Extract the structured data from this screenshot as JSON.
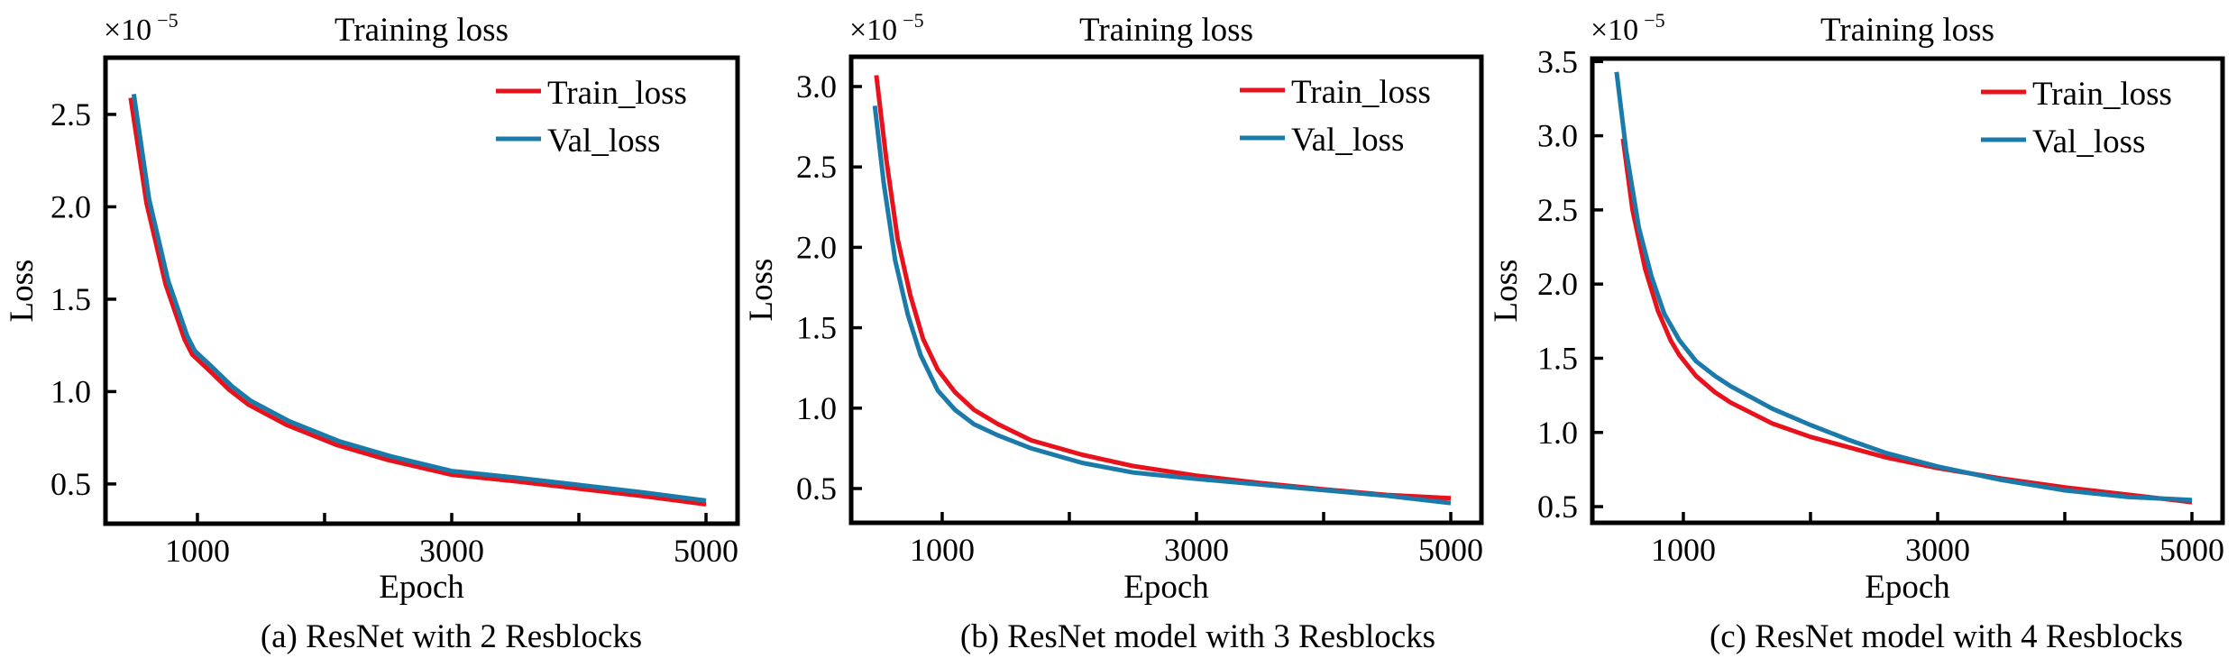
{
  "chart_data": [
    {
      "type": "line",
      "panel": "a",
      "title": "Training loss",
      "caption": "(a) ResNet with 2 Resblocks",
      "xlabel": "Epoch",
      "ylabel": "Loss",
      "y_multiplier": {
        "base": "×10",
        "exponent": "−5"
      },
      "xlim": [
        277,
        5248
      ],
      "ylim": [
        0.285,
        2.807
      ],
      "xticks": [
        1000,
        2000,
        3000,
        4000,
        5000
      ],
      "xtick_labels": [
        "1000",
        "",
        "3000",
        "",
        "5000"
      ],
      "yticks": [
        0.5,
        1.0,
        1.5,
        2.0,
        2.5
      ],
      "ytick_labels": [
        "0.5",
        "1.0",
        "1.5",
        "2.0",
        "2.5"
      ],
      "grid": false,
      "legend_position": "top-right",
      "series": [
        {
          "name": "Train_loss",
          "color": "#e8121c",
          "x": [
            475,
            600,
            750,
            900,
            960,
            1100,
            1250,
            1400,
            1700,
            2100,
            2500,
            3000,
            3500,
            4000,
            4500,
            5000
          ],
          "y": [
            2.59,
            2.02,
            1.58,
            1.28,
            1.2,
            1.11,
            1.01,
            0.93,
            0.82,
            0.71,
            0.63,
            0.55,
            0.515,
            0.475,
            0.435,
            0.39
          ]
        },
        {
          "name": "Val_loss",
          "color": "#1a7bab",
          "x": [
            500,
            620,
            770,
            920,
            980,
            1120,
            1270,
            1420,
            1720,
            2120,
            2520,
            3000,
            3500,
            4000,
            4500,
            5000
          ],
          "y": [
            2.61,
            2.04,
            1.6,
            1.3,
            1.22,
            1.13,
            1.03,
            0.95,
            0.84,
            0.73,
            0.65,
            0.57,
            0.535,
            0.495,
            0.455,
            0.41
          ]
        }
      ]
    },
    {
      "type": "line",
      "panel": "b",
      "title": "Training loss",
      "caption": "(b) ResNet model with 3 Resblocks",
      "xlabel": "Epoch",
      "ylabel": "Loss",
      "y_multiplier": {
        "base": "×10",
        "exponent": "−5"
      },
      "xlim": [
        284,
        5241
      ],
      "ylim": [
        0.287,
        3.185
      ],
      "xticks": [
        1000,
        2000,
        3000,
        4000,
        5000
      ],
      "xtick_labels": [
        "1000",
        "",
        "3000",
        "",
        "5000"
      ],
      "yticks": [
        0.5,
        1.0,
        1.5,
        2.0,
        2.5,
        3.0
      ],
      "ytick_labels": [
        "0.5",
        "1.0",
        "1.5",
        "2.0",
        "2.5",
        "3.0"
      ],
      "grid": false,
      "legend_position": "top-right",
      "series": [
        {
          "name": "Train_loss",
          "color": "#e8121c",
          "x": [
            482,
            560,
            650,
            750,
            850,
            965,
            1100,
            1250,
            1440,
            1700,
            2100,
            2500,
            3000,
            3500,
            4000,
            4500,
            5000
          ],
          "y": [
            3.07,
            2.55,
            2.05,
            1.7,
            1.43,
            1.24,
            1.1,
            0.99,
            0.9,
            0.8,
            0.71,
            0.64,
            0.58,
            0.535,
            0.495,
            0.46,
            0.44
          ]
        },
        {
          "name": "Val_loss",
          "color": "#1a7bab",
          "x": [
            470,
            540,
            630,
            730,
            830,
            965,
            1100,
            1250,
            1440,
            1700,
            2100,
            2500,
            3000,
            3500,
            4000,
            4500,
            5000
          ],
          "y": [
            2.88,
            2.4,
            1.92,
            1.58,
            1.33,
            1.11,
            0.99,
            0.9,
            0.83,
            0.75,
            0.66,
            0.6,
            0.56,
            0.525,
            0.49,
            0.455,
            0.41
          ]
        }
      ]
    },
    {
      "type": "line",
      "panel": "c",
      "title": "Training loss",
      "caption": "(c) ResNet model with 4 Resblocks",
      "xlabel": "Epoch",
      "ylabel": "Loss",
      "y_multiplier": {
        "base": "×10",
        "exponent": "−5"
      },
      "xlim": [
        284,
        5241
      ],
      "ylim": [
        0.391,
        3.52
      ],
      "xticks": [
        1000,
        2000,
        3000,
        4000,
        5000
      ],
      "xtick_labels": [
        "1000",
        "",
        "3000",
        "",
        "5000"
      ],
      "yticks": [
        0.5,
        1.0,
        1.5,
        2.0,
        2.5,
        3.0,
        3.5
      ],
      "ytick_labels": [
        "0.5",
        "1.0",
        "1.5",
        "2.0",
        "2.5",
        "3.0",
        "3.5"
      ],
      "grid": false,
      "legend_position": "top-right",
      "series": [
        {
          "name": "Train_loss",
          "color": "#e8121c",
          "x": [
            525,
            600,
            700,
            800,
            900,
            970,
            1100,
            1250,
            1375,
            1700,
            2000,
            2300,
            2600,
            3000,
            3500,
            4000,
            4500,
            5000
          ],
          "y": [
            2.98,
            2.5,
            2.1,
            1.82,
            1.62,
            1.52,
            1.38,
            1.27,
            1.2,
            1.06,
            0.97,
            0.9,
            0.83,
            0.76,
            0.69,
            0.63,
            0.58,
            0.53
          ]
        },
        {
          "name": "Val_loss",
          "color": "#1a7bab",
          "x": [
            475,
            550,
            650,
            750,
            850,
            970,
            1100,
            1250,
            1375,
            1700,
            2000,
            2300,
            2600,
            3000,
            3500,
            4000,
            4500,
            5000
          ],
          "y": [
            3.43,
            2.9,
            2.38,
            2.05,
            1.8,
            1.62,
            1.48,
            1.38,
            1.31,
            1.16,
            1.05,
            0.95,
            0.86,
            0.77,
            0.68,
            0.61,
            0.565,
            0.545
          ]
        }
      ]
    }
  ]
}
